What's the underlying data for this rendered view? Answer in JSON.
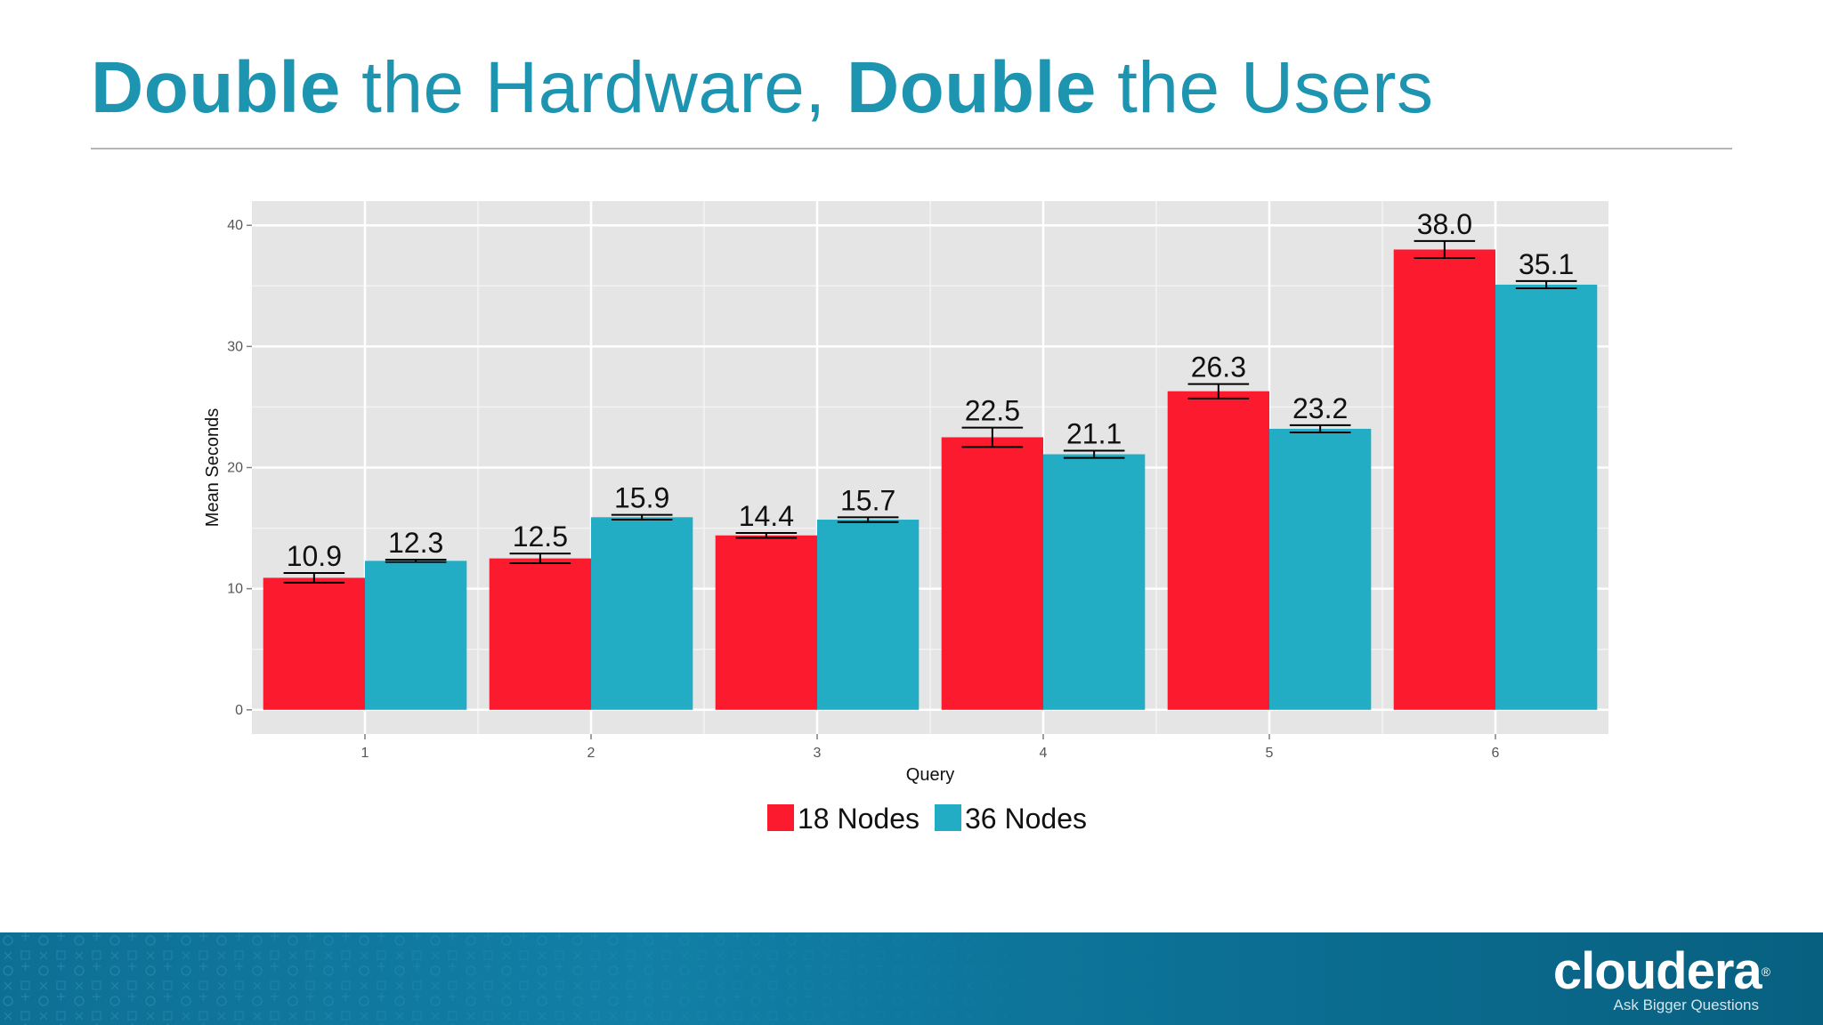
{
  "slide": {
    "title_part1": "Double",
    "title_part2": " the Hardware, ",
    "title_part3": "Double",
    "title_part4": " the Users"
  },
  "brand": {
    "logo_text": "cloudera",
    "registered_mark": "®",
    "tagline": "Ask Bigger Questions",
    "title_color": "#1d94b0",
    "footer_color": "#0e6f94"
  },
  "chart_data": {
    "type": "bar",
    "title": "",
    "xlabel": "Query",
    "ylabel": "Mean Seconds",
    "categories": [
      "1",
      "2",
      "3",
      "4",
      "5",
      "6"
    ],
    "ylim": [
      -2,
      42
    ],
    "yticks": [
      0,
      10,
      20,
      30,
      40
    ],
    "grid": true,
    "legend_position": "bottom",
    "series": [
      {
        "name": "18 Nodes",
        "color": "#fc1a2e",
        "values": [
          10.9,
          12.5,
          14.4,
          22.5,
          26.3,
          38.0
        ],
        "labels": [
          "10.9",
          "12.5",
          "14.4",
          "22.5",
          "26.3",
          "38.0"
        ],
        "errors": [
          0.4,
          0.4,
          0.2,
          0.8,
          0.6,
          0.7
        ]
      },
      {
        "name": "36 Nodes",
        "color": "#22adc5",
        "values": [
          12.3,
          15.9,
          15.7,
          21.1,
          23.2,
          35.1
        ],
        "labels": [
          "12.3",
          "15.9",
          "15.7",
          "21.1",
          "23.2",
          "35.1"
        ],
        "errors": [
          0.1,
          0.2,
          0.2,
          0.3,
          0.3,
          0.3
        ]
      }
    ]
  }
}
